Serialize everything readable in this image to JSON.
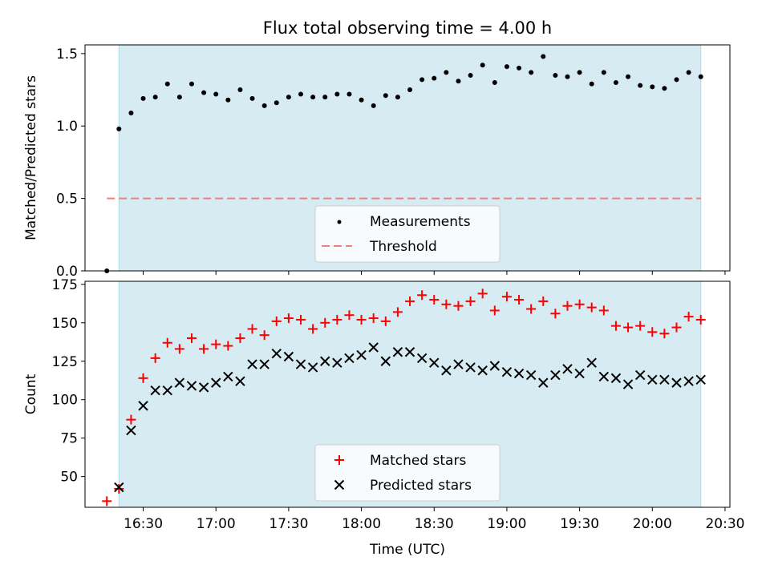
{
  "title": "Flux total observing time = 4.00 h",
  "colors": {
    "shade": "#add8e6",
    "measurements": "#000000",
    "threshold": "#f08080",
    "matched": "#ff0000",
    "predicted": "#000000"
  },
  "chart_data": [
    {
      "type": "scatter",
      "ylabel": "Matched/Predicted stars",
      "ylim": [
        0,
        1.56
      ],
      "xlim_minutes": [
        966,
        1232
      ],
      "yticks": [
        0.0,
        0.5,
        1.0,
        1.5
      ],
      "ytick_labels": [
        "0.0",
        "0.5",
        "1.0",
        "1.5"
      ],
      "shaded_interval": [
        "16:20",
        "20:20"
      ],
      "legend": {
        "position": "lower-center",
        "entries": [
          "Measurements",
          "Threshold"
        ]
      },
      "series": [
        {
          "name": "Measurements",
          "marker": "dot",
          "x": [
            "16:15",
            "16:20",
            "16:25",
            "16:30",
            "16:35",
            "16:40",
            "16:45",
            "16:50",
            "16:55",
            "17:00",
            "17:05",
            "17:10",
            "17:15",
            "17:20",
            "17:25",
            "17:30",
            "17:35",
            "17:40",
            "17:45",
            "17:50",
            "17:55",
            "18:00",
            "18:05",
            "18:10",
            "18:15",
            "18:20",
            "18:25",
            "18:30",
            "18:35",
            "18:40",
            "18:45",
            "18:50",
            "18:55",
            "19:00",
            "19:05",
            "19:10",
            "19:15",
            "19:20",
            "19:25",
            "19:30",
            "19:35",
            "19:40",
            "19:45",
            "19:50",
            "19:55",
            "20:00",
            "20:05",
            "20:10",
            "20:15",
            "20:20"
          ],
          "y": [
            0.0,
            0.98,
            1.09,
            1.19,
            1.2,
            1.29,
            1.2,
            1.29,
            1.23,
            1.22,
            1.18,
            1.25,
            1.19,
            1.14,
            1.16,
            1.2,
            1.22,
            1.2,
            1.2,
            1.22,
            1.22,
            1.18,
            1.14,
            1.21,
            1.2,
            1.25,
            1.32,
            1.33,
            1.37,
            1.31,
            1.35,
            1.42,
            1.3,
            1.41,
            1.4,
            1.37,
            1.48,
            1.35,
            1.34,
            1.37,
            1.29,
            1.37,
            1.3,
            1.34,
            1.28,
            1.27,
            1.26,
            1.32,
            1.37,
            1.34
          ]
        },
        {
          "name": "Threshold",
          "style": "dashed-line",
          "x": [
            "16:15",
            "20:20"
          ],
          "y": [
            0.5,
            0.5
          ]
        }
      ]
    },
    {
      "type": "scatter",
      "ylabel": "Count",
      "xlabel": "Time (UTC)",
      "ylim": [
        30,
        177
      ],
      "xlim_minutes": [
        966,
        1232
      ],
      "yticks": [
        50,
        75,
        100,
        125,
        150,
        175
      ],
      "ytick_labels": [
        "50",
        "75",
        "100",
        "125",
        "150",
        "175"
      ],
      "xticks": [
        "16:30",
        "17:00",
        "17:30",
        "18:00",
        "18:30",
        "19:00",
        "19:30",
        "20:00",
        "20:30"
      ],
      "shaded_interval": [
        "16:20",
        "20:20"
      ],
      "legend": {
        "position": "lower-center",
        "entries": [
          "Matched stars",
          "Predicted stars"
        ]
      },
      "series": [
        {
          "name": "Matched stars",
          "marker": "plus",
          "x": [
            "16:15",
            "16:20",
            "16:25",
            "16:30",
            "16:35",
            "16:40",
            "16:45",
            "16:50",
            "16:55",
            "17:00",
            "17:05",
            "17:10",
            "17:15",
            "17:20",
            "17:25",
            "17:30",
            "17:35",
            "17:40",
            "17:45",
            "17:50",
            "17:55",
            "18:00",
            "18:05",
            "18:10",
            "18:15",
            "18:20",
            "18:25",
            "18:30",
            "18:35",
            "18:40",
            "18:45",
            "18:50",
            "18:55",
            "19:00",
            "19:05",
            "19:10",
            "19:15",
            "19:20",
            "19:25",
            "19:30",
            "19:35",
            "19:40",
            "19:45",
            "19:50",
            "19:55",
            "20:00",
            "20:05",
            "20:10",
            "20:15",
            "20:20"
          ],
          "y": [
            34,
            42,
            87,
            114,
            127,
            137,
            133,
            140,
            133,
            136,
            135,
            140,
            146,
            142,
            151,
            153,
            152,
            146,
            150,
            152,
            155,
            152,
            153,
            151,
            157,
            164,
            168,
            165,
            162,
            161,
            164,
            169,
            158,
            167,
            165,
            159,
            164,
            156,
            161,
            162,
            160,
            158,
            148,
            147,
            148,
            144,
            143,
            147,
            154,
            152
          ]
        },
        {
          "name": "Predicted stars",
          "marker": "x",
          "x": [
            "16:20",
            "16:25",
            "16:30",
            "16:35",
            "16:40",
            "16:45",
            "16:50",
            "16:55",
            "17:00",
            "17:05",
            "17:10",
            "17:15",
            "17:20",
            "17:25",
            "17:30",
            "17:35",
            "17:40",
            "17:45",
            "17:50",
            "17:55",
            "18:00",
            "18:05",
            "18:10",
            "18:15",
            "18:20",
            "18:25",
            "18:30",
            "18:35",
            "18:40",
            "18:45",
            "18:50",
            "18:55",
            "19:00",
            "19:05",
            "19:10",
            "19:15",
            "19:20",
            "19:25",
            "19:30",
            "19:35",
            "19:40",
            "19:45",
            "19:50",
            "19:55",
            "20:00",
            "20:05",
            "20:10",
            "20:15",
            "20:20"
          ],
          "y": [
            43,
            80,
            96,
            106,
            106,
            111,
            109,
            108,
            111,
            115,
            112,
            123,
            123,
            130,
            128,
            123,
            121,
            125,
            124,
            127,
            129,
            134,
            125,
            131,
            131,
            127,
            124,
            119,
            123,
            121,
            119,
            122,
            118,
            117,
            116,
            111,
            116,
            120,
            117,
            124,
            115,
            114,
            110,
            116,
            113,
            113,
            111,
            112,
            113
          ]
        }
      ]
    }
  ]
}
